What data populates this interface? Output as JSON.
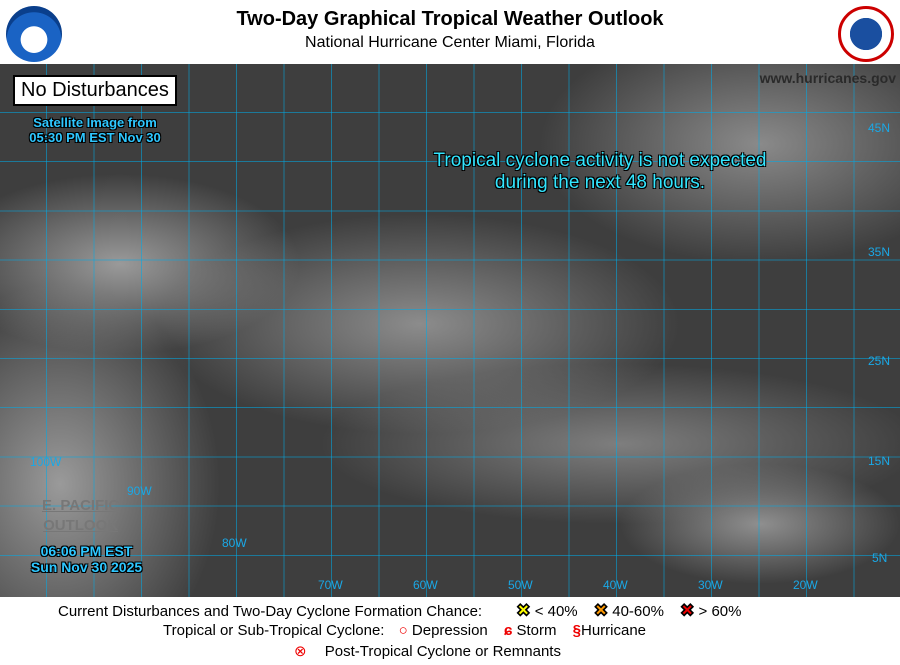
{
  "header": {
    "title": "Two-Day Graphical Tropical Weather Outlook",
    "subtitle": "National Hurricane Center  Miami, Florida"
  },
  "map": {
    "status_box": "No Disturbances",
    "satellite_label": [
      "Satellite Image from",
      "05:30 PM EST Nov 30"
    ],
    "message": [
      "Tropical cyclone activity is not expected",
      "during the next 48 hours."
    ],
    "website": "www.hurricanes.gov",
    "epac_outlook": [
      "E. PACIFIC",
      "OUTLOOK"
    ],
    "issued": [
      "06:06 PM EST",
      "Sun Nov 30 2025"
    ],
    "lat_labels": [
      "45N",
      "35N",
      "25N",
      "15N",
      "5N"
    ],
    "lon_labels": [
      "100W",
      "90W",
      "80W",
      "70W",
      "60W",
      "50W",
      "40W",
      "30W",
      "20W"
    ],
    "grid_color": "#00aae6"
  },
  "legend": {
    "formation_label": "Current Disturbances and Two-Day Cyclone Formation Chance:",
    "chances": [
      {
        "label": "< 40%",
        "color": "#ffff00"
      },
      {
        "label": "40-60%",
        "color": "#ff9900"
      },
      {
        "label": "> 60%",
        "color": "#ee0000"
      }
    ],
    "cyclone_label": "Tropical or Sub-Tropical Cyclone:",
    "depression": "Depression",
    "storm": "Storm",
    "hurricane": "Hurricane",
    "post_tropical": "Post-Tropical Cyclone or Remnants"
  }
}
